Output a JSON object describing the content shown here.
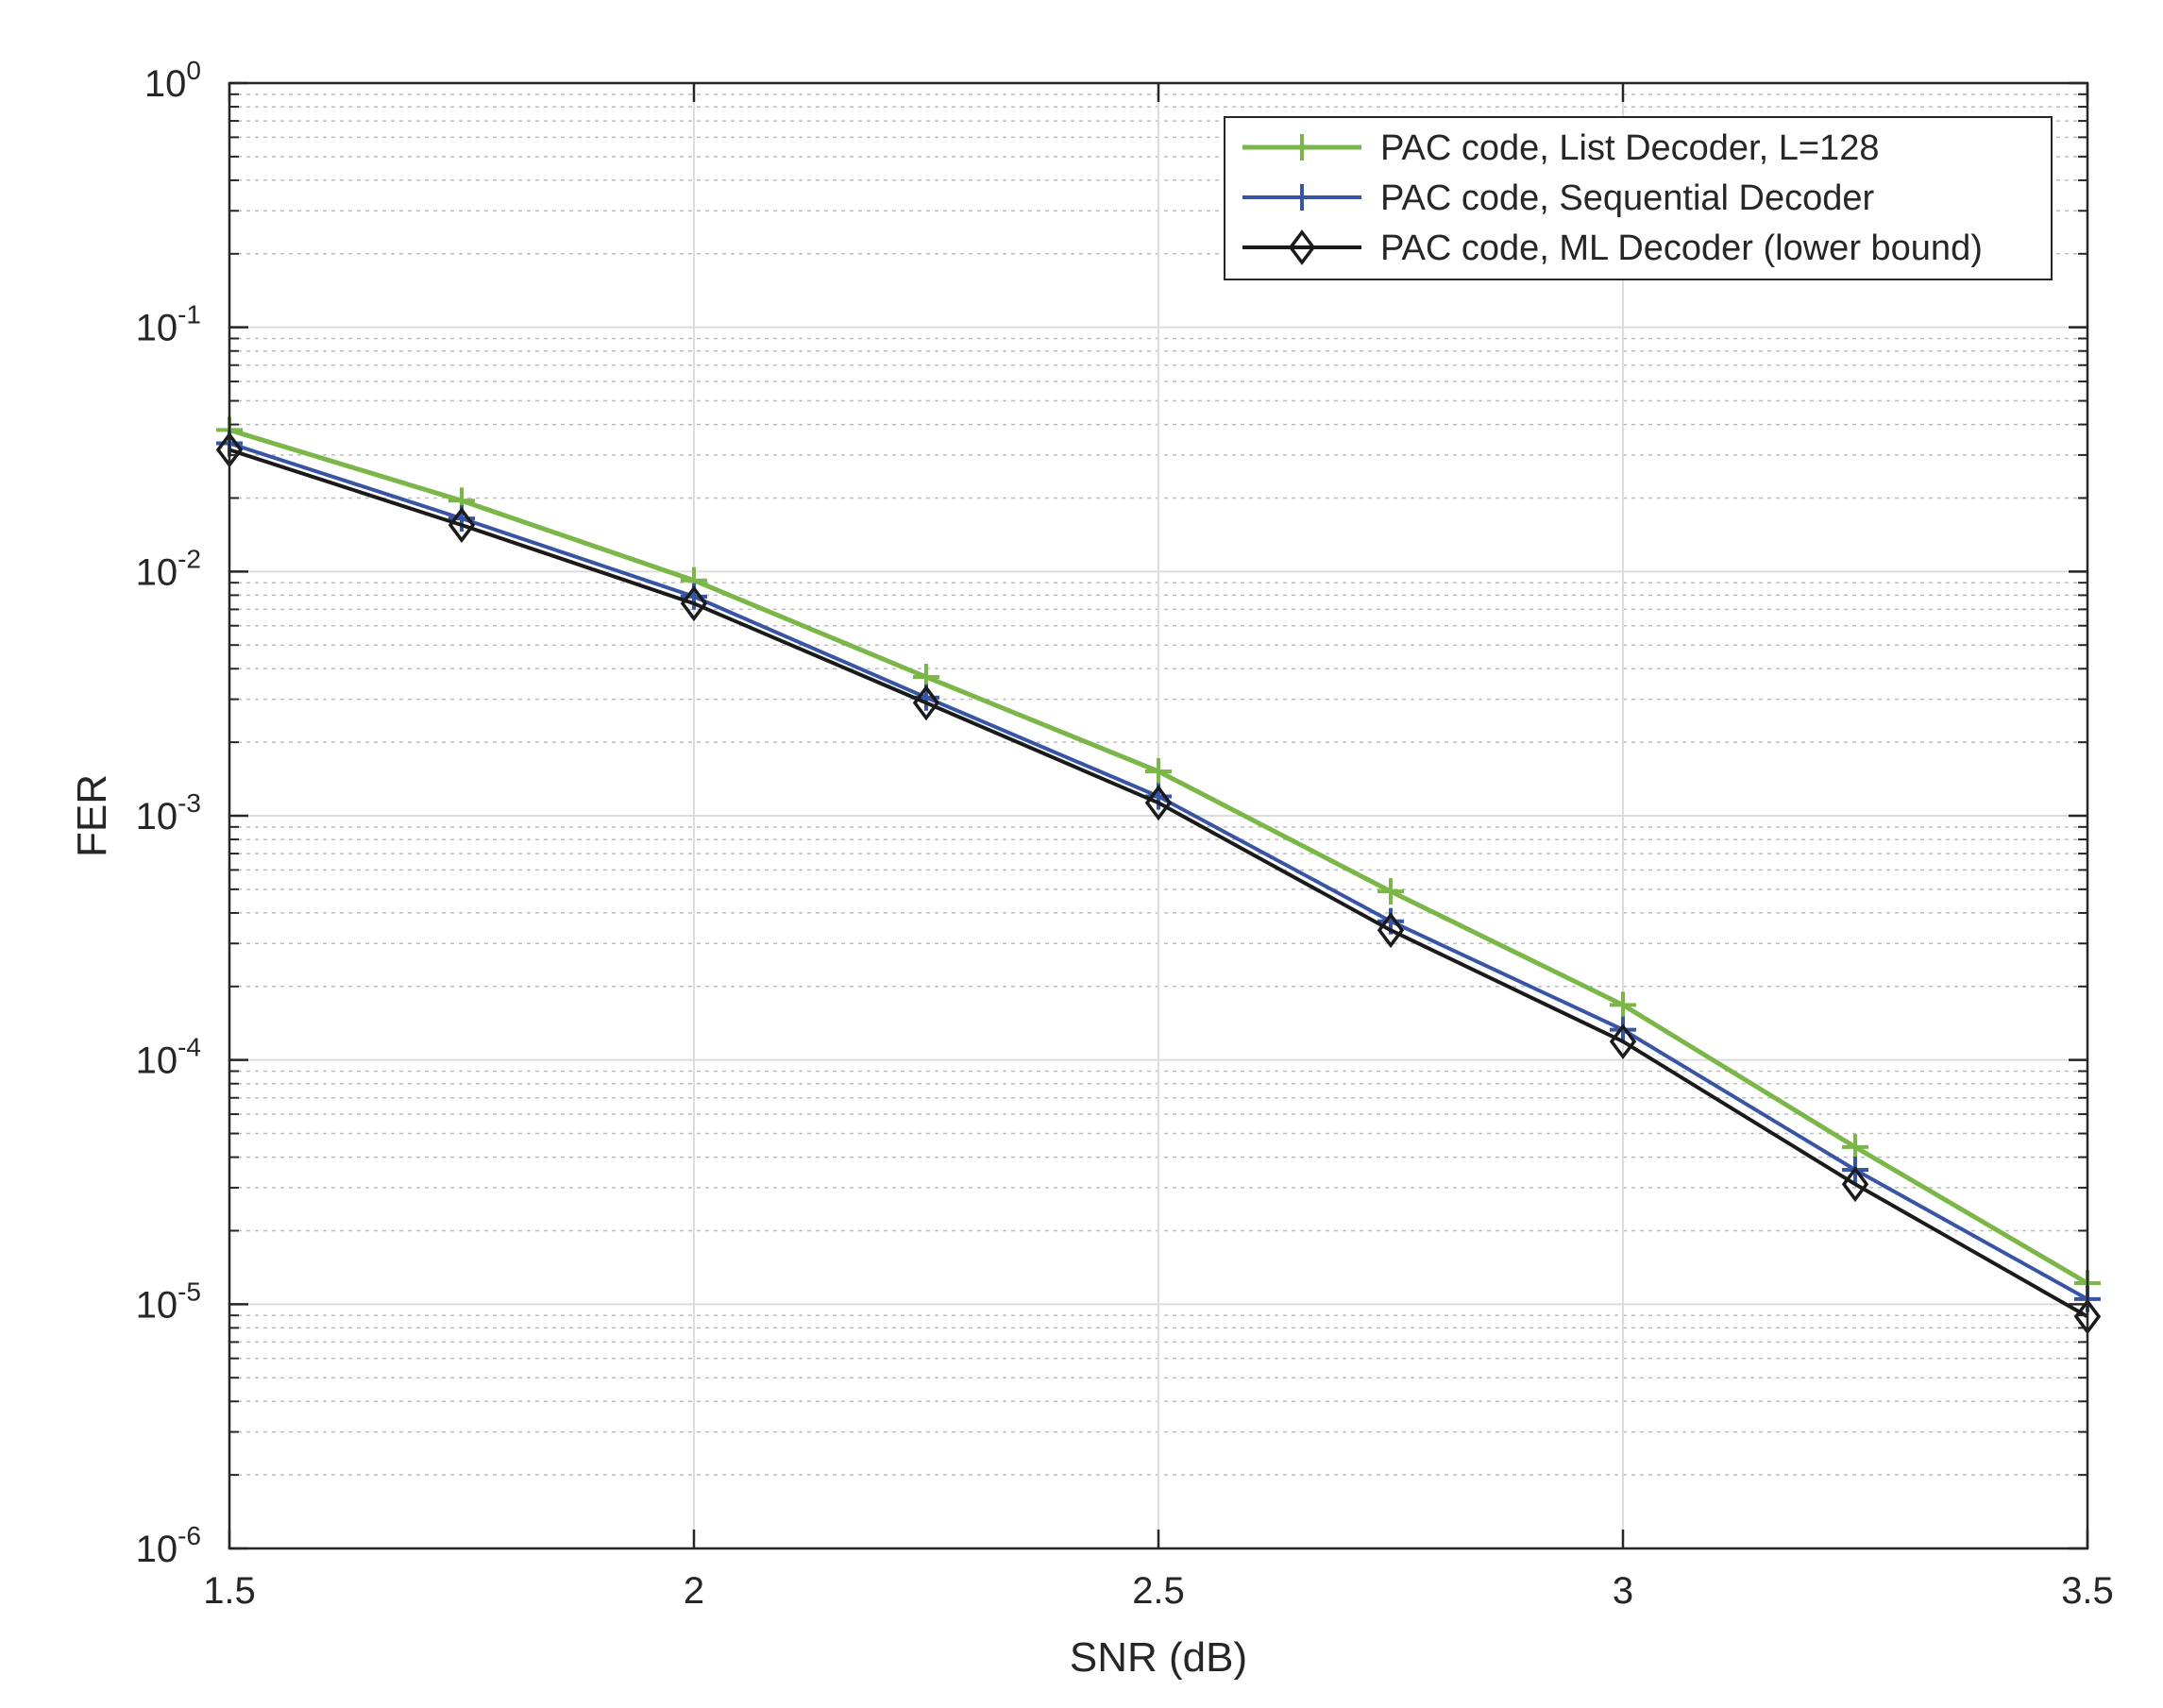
{
  "chart_data": {
    "type": "line",
    "title": "",
    "xlabel": "SNR (dB)",
    "ylabel": "FER",
    "xlim": [
      1.5,
      3.5
    ],
    "ylim": [
      1e-06,
      1
    ],
    "yscale": "log",
    "grid": true,
    "minor_grid": true,
    "legend_position": "top-right",
    "x_ticks": [
      1.5,
      2,
      2.5,
      3,
      3.5
    ],
    "x_tick_labels": [
      "1.5",
      "2",
      "2.5",
      "3",
      "3.5"
    ],
    "y_ticks": [
      1,
      0.1,
      0.01,
      0.001,
      0.0001,
      1e-05,
      1e-06
    ],
    "y_tick_labels": [
      {
        "base": "10",
        "exp": "0"
      },
      {
        "base": "10",
        "exp": "-1"
      },
      {
        "base": "10",
        "exp": "-2"
      },
      {
        "base": "10",
        "exp": "-3"
      },
      {
        "base": "10",
        "exp": "-4"
      },
      {
        "base": "10",
        "exp": "-5"
      },
      {
        "base": "10",
        "exp": "-6"
      }
    ],
    "x": [
      1.5,
      1.75,
      2.0,
      2.25,
      2.5,
      2.75,
      3.0,
      3.25,
      3.5
    ],
    "series": [
      {
        "name": "PAC code, List Decoder, L=128",
        "color": "#7ab648",
        "marker": "plus",
        "values": [
          0.038,
          0.0195,
          0.0092,
          0.0037,
          0.00152,
          0.00049,
          0.000168,
          4.4e-05,
          1.22e-05
        ]
      },
      {
        "name": "PAC code, Sequential Decoder",
        "color": "#3855a5",
        "marker": "plus",
        "values": [
          0.0335,
          0.0165,
          0.0079,
          0.00305,
          0.0012,
          0.00037,
          0.000133,
          3.55e-05,
          1.05e-05
        ]
      },
      {
        "name": "PAC code, ML Decoder (lower bound)",
        "color": "#1a1a1a",
        "marker": "diamond",
        "values": [
          0.0315,
          0.0155,
          0.0074,
          0.0029,
          0.00113,
          0.00034,
          0.000119,
          3.1e-05,
          8.9e-06
        ]
      }
    ]
  }
}
